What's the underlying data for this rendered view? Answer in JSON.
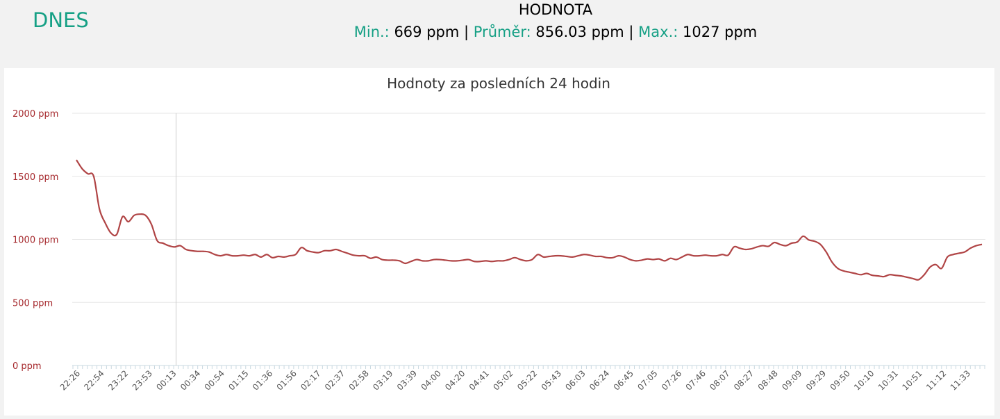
{
  "header": {
    "day_label": "DNES",
    "value_title": "HODNOTA",
    "stats": {
      "min_label": "Min.:",
      "min_value": "669 ppm",
      "avg_label": "Průměr:",
      "avg_value": "856.03 ppm",
      "max_label": "Max.:",
      "max_value": "1027 ppm",
      "separator": "|"
    }
  },
  "colors": {
    "accent": "#16a085",
    "line": "#b04445",
    "axis_text": "#a5282c",
    "text": "#2c3e50"
  },
  "chart_data": {
    "type": "line",
    "title": "Hodnoty za posledních 24 hodin",
    "xlabel": "",
    "ylabel": "",
    "ylim": [
      0,
      2000
    ],
    "y_ticks": [
      0,
      500,
      1000,
      1500,
      2000
    ],
    "y_tick_labels": [
      "0 ppm",
      "500 ppm",
      "1000 ppm",
      "1500 ppm",
      "2000 ppm"
    ],
    "grid": true,
    "legend": "none",
    "crosshair_at": "00:13",
    "x_tick_labels": [
      "22:26",
      "22:54",
      "23:22",
      "23:53",
      "00:13",
      "00:34",
      "00:54",
      "01:15",
      "01:36",
      "01:56",
      "02:17",
      "02:37",
      "02:58",
      "03:19",
      "03:39",
      "04:00",
      "04:20",
      "04:41",
      "05:02",
      "05:22",
      "05:43",
      "06:03",
      "06:24",
      "06:45",
      "07:05",
      "07:26",
      "07:46",
      "08:07",
      "08:27",
      "08:48",
      "09:09",
      "09:29",
      "09:50",
      "10:10",
      "10:31",
      "10:51",
      "11:12",
      "11:33"
    ],
    "series": [
      {
        "values": [
          1630,
          1560,
          1520,
          1500,
          1240,
          1130,
          1050,
          1040,
          1180,
          1140,
          1190,
          1200,
          1190,
          1120,
          990,
          970,
          950,
          940,
          950,
          920,
          910,
          905,
          905,
          900,
          880,
          870,
          880,
          870,
          870,
          875,
          870,
          880,
          860,
          880,
          855,
          865,
          860,
          870,
          880,
          935,
          910,
          900,
          895,
          910,
          910,
          920,
          905,
          890,
          875,
          870,
          870,
          850,
          860,
          840,
          835,
          835,
          830,
          810,
          825,
          840,
          830,
          830,
          840,
          840,
          835,
          830,
          830,
          835,
          840,
          825,
          825,
          830,
          825,
          830,
          830,
          840,
          855,
          840,
          830,
          840,
          880,
          860,
          865,
          870,
          870,
          865,
          860,
          870,
          880,
          875,
          865,
          865,
          855,
          855,
          870,
          860,
          840,
          830,
          835,
          845,
          840,
          845,
          830,
          850,
          840,
          860,
          880,
          870,
          870,
          875,
          870,
          870,
          880,
          875,
          940,
          930,
          920,
          925,
          940,
          950,
          945,
          975,
          960,
          950,
          970,
          980,
          1025,
          995,
          985,
          960,
          900,
          820,
          770,
          750,
          740,
          730,
          720,
          730,
          715,
          710,
          705,
          720,
          715,
          710,
          700,
          690,
          680,
          720,
          780,
          800,
          770,
          860,
          880,
          890,
          900,
          930,
          950,
          960
        ]
      }
    ]
  }
}
